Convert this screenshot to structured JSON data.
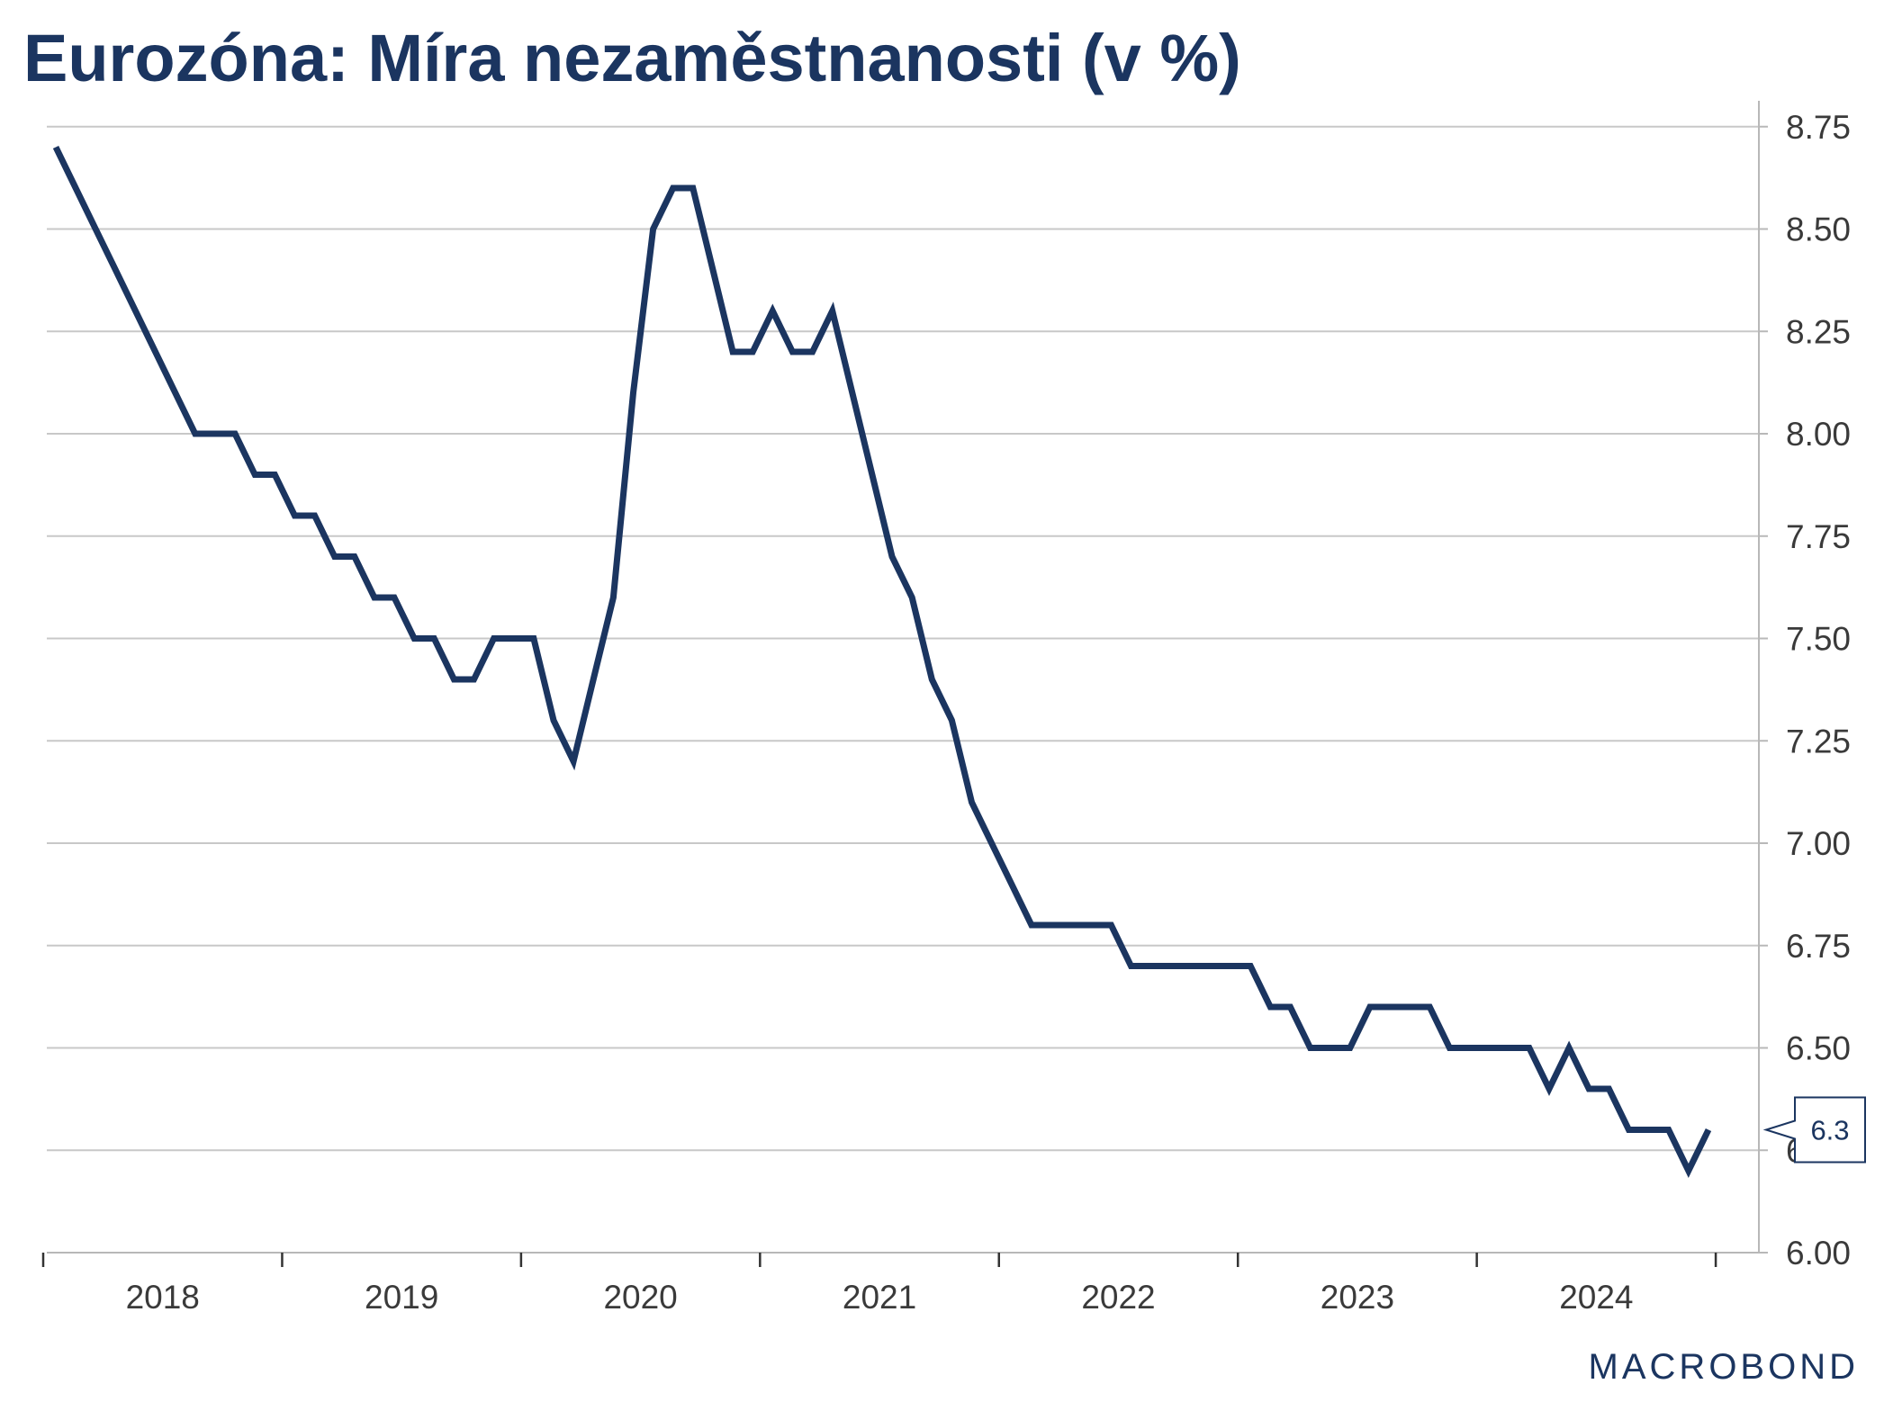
{
  "title": "Eurozóna: Míra nezaměstnanosti (v %)",
  "logo_text": "MACROBOND",
  "chart_data": {
    "type": "line",
    "title": "Eurozóna: Míra nezaměstnanosti (v %)",
    "xlabel": "",
    "ylabel": "",
    "x_start": "2018-01",
    "x_tick_labels": [
      "2018",
      "2019",
      "2020",
      "2021",
      "2022",
      "2023",
      "2024"
    ],
    "y_tick_labels": [
      "6.00",
      "6.25",
      "6.50",
      "6.75",
      "7.00",
      "7.25",
      "7.50",
      "7.75",
      "8.00",
      "8.25",
      "8.50",
      "8.75"
    ],
    "ylim": [
      6.0,
      8.8
    ],
    "y_axis_side": "right",
    "grid": true,
    "color": "#1b3560",
    "end_label": "6.3",
    "series": [
      {
        "values": [
          8.7,
          8.6,
          8.5,
          8.4,
          8.3,
          8.2,
          8.1,
          8.0,
          8.0,
          8.0,
          7.9,
          7.9,
          7.8,
          7.8,
          7.7,
          7.7,
          7.6,
          7.6,
          7.5,
          7.5,
          7.4,
          7.4,
          7.5,
          7.5,
          7.5,
          7.3,
          7.2,
          7.4,
          7.6,
          8.1,
          8.5,
          8.6,
          8.6,
          8.4,
          8.2,
          8.2,
          8.3,
          8.2,
          8.2,
          8.3,
          8.1,
          7.9,
          7.7,
          7.6,
          7.4,
          7.3,
          7.1,
          7.0,
          6.9,
          6.8,
          6.8,
          6.8,
          6.8,
          6.8,
          6.7,
          6.7,
          6.7,
          6.7,
          6.7,
          6.7,
          6.7,
          6.6,
          6.6,
          6.5,
          6.5,
          6.5,
          6.6,
          6.6,
          6.6,
          6.6,
          6.5,
          6.5,
          6.5,
          6.5,
          6.5,
          6.4,
          6.5,
          6.4,
          6.4,
          6.3,
          6.3,
          6.3,
          6.2,
          6.3
        ]
      }
    ]
  }
}
